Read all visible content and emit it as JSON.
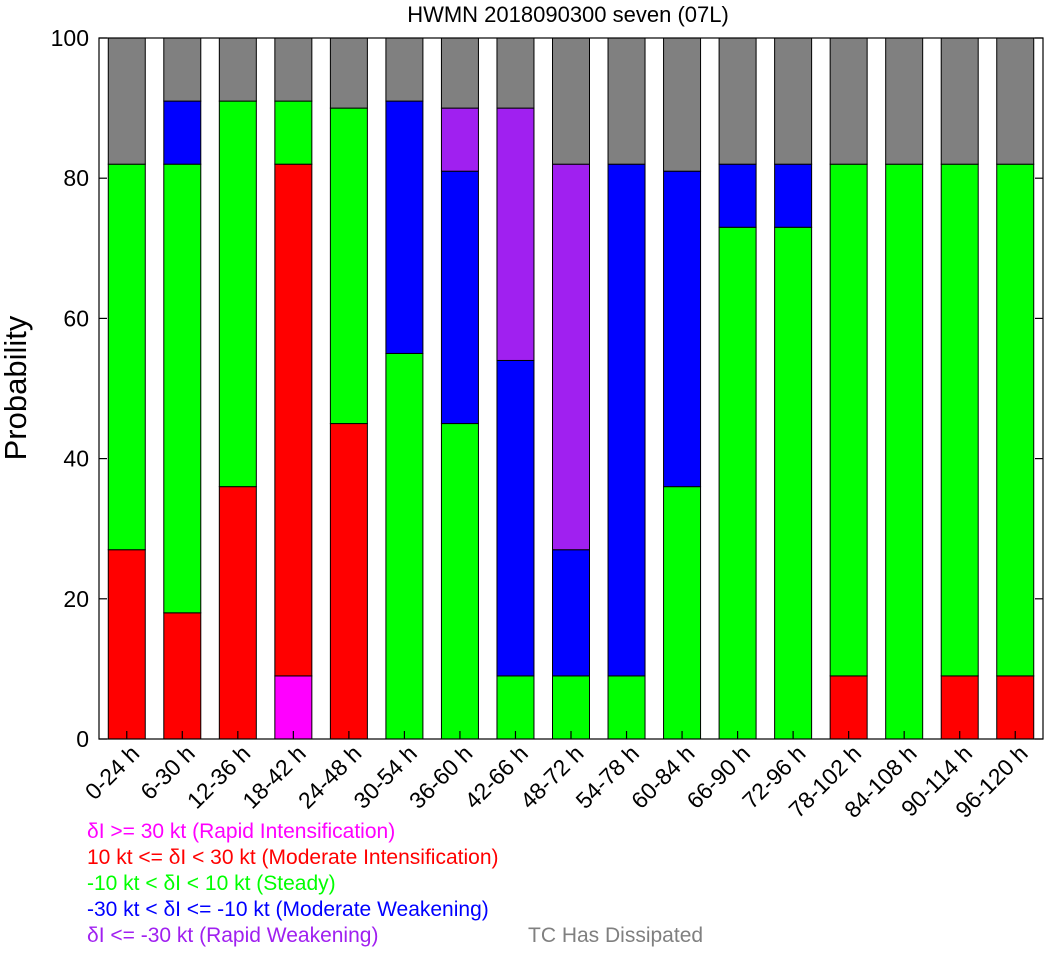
{
  "chart_data": {
    "type": "bar",
    "stacked": true,
    "title": "HWMN 2018090300 seven (07L)",
    "xlabel": "",
    "ylabel": "Probability",
    "ylim": [
      0,
      100
    ],
    "yticks": [
      0,
      20,
      40,
      60,
      80,
      100
    ],
    "categories": [
      "0-24 h",
      "6-30 h",
      "12-36 h",
      "18-42 h",
      "24-48 h",
      "30-54 h",
      "36-60 h",
      "42-66 h",
      "48-72 h",
      "54-78 h",
      "60-84 h",
      "66-90 h",
      "72-96 h",
      "78-102 h",
      "84-108 h",
      "90-114 h",
      "96-120 h"
    ],
    "legend_position": "bottom",
    "series": [
      {
        "name": "δI >= 30 kt (Rapid Intensification)",
        "color": "#ff00ff",
        "values": [
          0,
          0,
          0,
          9,
          0,
          0,
          0,
          0,
          0,
          0,
          0,
          0,
          0,
          0,
          0,
          0,
          0
        ]
      },
      {
        "name": "10 kt <= δI < 30 kt (Moderate Intensification)",
        "color": "#ff0000",
        "values": [
          27,
          18,
          36,
          73,
          45,
          0,
          0,
          0,
          0,
          0,
          0,
          0,
          0,
          9,
          0,
          9,
          9
        ]
      },
      {
        "name": "-10 kt < δI < 10 kt (Steady)",
        "color": "#00ff00",
        "values": [
          55,
          64,
          55,
          9,
          45,
          55,
          45,
          9,
          9,
          9,
          36,
          73,
          73,
          73,
          82,
          73,
          73
        ]
      },
      {
        "name": "-30 kt < δI <= -10 kt (Moderate Weakening)",
        "color": "#0000ff",
        "values": [
          0,
          9,
          0,
          0,
          0,
          36,
          36,
          45,
          18,
          73,
          45,
          9,
          9,
          0,
          0,
          0,
          0
        ]
      },
      {
        "name": "δI <= -30 kt (Rapid Weakening)",
        "color": "#a020f0",
        "values": [
          0,
          0,
          0,
          0,
          0,
          0,
          9,
          36,
          55,
          0,
          0,
          0,
          0,
          0,
          0,
          0,
          0
        ]
      },
      {
        "name": "TC Has Dissipated",
        "color": "#808080",
        "values": [
          18,
          9,
          9,
          9,
          10,
          9,
          10,
          10,
          18,
          18,
          19,
          18,
          18,
          18,
          18,
          18,
          18
        ]
      }
    ]
  }
}
